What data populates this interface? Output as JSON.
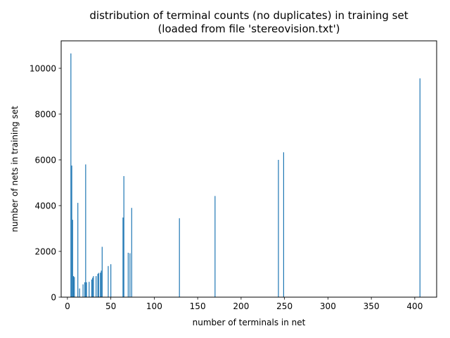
{
  "chart_data": {
    "type": "bar",
    "title": [
      "distribution of terminal counts (no duplicates) in training set",
      "(loaded from file 'stereovision.txt')"
    ],
    "xlabel": "number of terminals in net",
    "ylabel": "number of nets in training set",
    "xlim": [
      -7.2,
      425.2
    ],
    "ylim": [
      0,
      11200
    ],
    "xticks": [
      0,
      50,
      100,
      150,
      200,
      250,
      300,
      350,
      400
    ],
    "yticks": [
      0,
      2000,
      4000,
      6000,
      8000,
      10000
    ],
    "grid": false,
    "color": "#1f77b4",
    "bar_width": 0.8,
    "series": [
      {
        "x": [
          4,
          5,
          6,
          7,
          8,
          12,
          14,
          18,
          20,
          21,
          22,
          25,
          28,
          29,
          30,
          33,
          35,
          36,
          38,
          39,
          40,
          47,
          50,
          64,
          65,
          70,
          72,
          74,
          129,
          170,
          243,
          249,
          406
        ],
        "values": [
          10650,
          5750,
          3380,
          920,
          880,
          4120,
          380,
          560,
          650,
          5800,
          650,
          670,
          770,
          850,
          920,
          920,
          1020,
          1060,
          1070,
          1160,
          2200,
          1360,
          1440,
          3480,
          5290,
          1940,
          1920,
          3900,
          3450,
          4420,
          6000,
          6330,
          9560
        ]
      }
    ]
  }
}
